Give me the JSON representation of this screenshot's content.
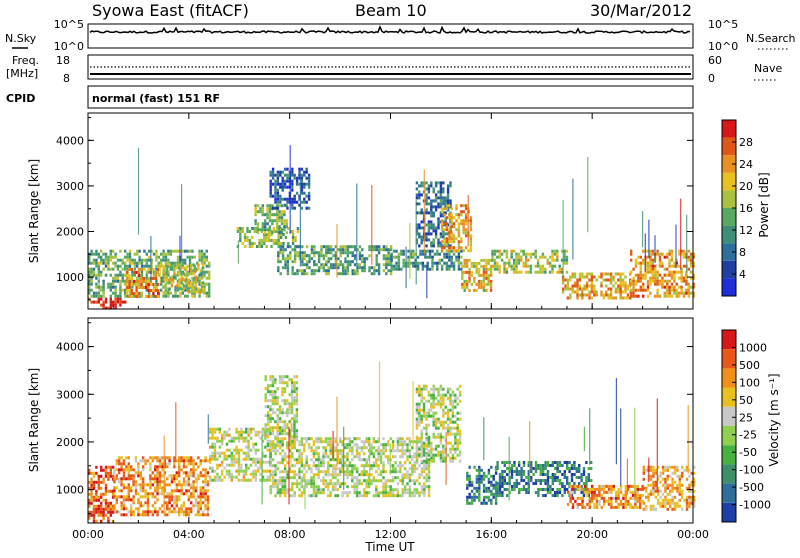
{
  "header": {
    "title": "Syowa East (fitACF)",
    "beam": "Beam 10",
    "date": "30/Mar/2012"
  },
  "strip_panels": {
    "nsky": {
      "label": "N.Sky",
      "ticks": [
        "10^5",
        "10^0"
      ],
      "right_label": "N.Search",
      "right_ticks": [
        "10^5",
        "10^0"
      ]
    },
    "freq": {
      "label_line1": "Freq.",
      "label_line2": "[MHz]",
      "ticks": [
        "18",
        "8"
      ],
      "right_label": "Nave",
      "right_ticks": [
        "60",
        "0"
      ]
    },
    "cpid": {
      "label": "CPID",
      "text": "normal (fast) 151 RF"
    }
  },
  "chart_data": [
    {
      "type": "heatmap",
      "name": "Power",
      "ylabel": "Slant Range [km]",
      "xlabel": "",
      "ylim": [
        300,
        4600
      ],
      "xlim_hours": [
        0,
        24
      ],
      "yticks": [
        "1000",
        "2000",
        "3000",
        "4000"
      ],
      "xticks": [
        "00:00",
        "04:00",
        "08:00",
        "12:00",
        "16:00",
        "20:00",
        "00:00"
      ],
      "colorbar": {
        "label": "Power [dB]",
        "ticks": [
          "4",
          "8",
          "12",
          "16",
          "20",
          "24",
          "28"
        ],
        "colors": [
          "#1f2fd8",
          "#2040a0",
          "#2e6e9a",
          "#3f8f78",
          "#58a860",
          "#a8c240",
          "#e8c020",
          "#e89020",
          "#e05818",
          "#d81818"
        ]
      },
      "features": [
        {
          "start": 0.0,
          "end": 1.5,
          "r_lo": 350,
          "r_hi": 550,
          "level": 0.95
        },
        {
          "start": 0.0,
          "end": 4.8,
          "r_lo": 550,
          "r_hi": 1600,
          "level": 0.45
        },
        {
          "start": 1.5,
          "end": 2.8,
          "r_lo": 600,
          "r_hi": 1200,
          "level": 0.75
        },
        {
          "start": 3.0,
          "end": 4.6,
          "r_lo": 700,
          "r_hi": 1300,
          "level": 0.55
        },
        {
          "start": 5.9,
          "end": 8.3,
          "r_lo": 1700,
          "r_hi": 2100,
          "level": 0.5
        },
        {
          "start": 6.6,
          "end": 7.9,
          "r_lo": 2000,
          "r_hi": 2600,
          "level": 0.45
        },
        {
          "start": 7.2,
          "end": 8.8,
          "r_lo": 2500,
          "r_hi": 3400,
          "level": 0.2
        },
        {
          "start": 7.5,
          "end": 12.0,
          "r_lo": 1100,
          "r_hi": 1700,
          "level": 0.4
        },
        {
          "start": 12.0,
          "end": 14.8,
          "r_lo": 1200,
          "r_hi": 1600,
          "level": 0.35
        },
        {
          "start": 13.0,
          "end": 14.4,
          "r_lo": 1700,
          "r_hi": 3100,
          "level": 0.25
        },
        {
          "start": 14.0,
          "end": 15.2,
          "r_lo": 1600,
          "r_hi": 2600,
          "level": 0.7
        },
        {
          "start": 14.8,
          "end": 16.0,
          "r_lo": 700,
          "r_hi": 1400,
          "level": 0.65
        },
        {
          "start": 16.0,
          "end": 19.0,
          "r_lo": 1100,
          "r_hi": 1600,
          "level": 0.55
        },
        {
          "start": 18.8,
          "end": 21.5,
          "r_lo": 550,
          "r_hi": 1100,
          "level": 0.7
        },
        {
          "start": 21.5,
          "end": 24.0,
          "r_lo": 600,
          "r_hi": 1600,
          "level": 0.75
        }
      ]
    },
    {
      "type": "heatmap",
      "name": "Velocity",
      "ylabel": "Slant Range [km]",
      "xlabel": "Time UT",
      "ylim": [
        300,
        4600
      ],
      "xlim_hours": [
        0,
        24
      ],
      "yticks": [
        "1000",
        "2000",
        "3000",
        "4000"
      ],
      "xticks": [
        "00:00",
        "04:00",
        "08:00",
        "12:00",
        "16:00",
        "20:00",
        "00:00"
      ],
      "colorbar": {
        "label": "Velocity [m s⁻¹]",
        "ticks": [
          "1000",
          "500",
          "100",
          "50",
          "25",
          "-25",
          "-50",
          "-100",
          "-500",
          "-1000"
        ],
        "colors": [
          "#1e3fa8",
          "#2e6e9a",
          "#3d8f6a",
          "#46b040",
          "#8fd050",
          "#c8c8c8",
          "#e8c020",
          "#f09018",
          "#e85818",
          "#d81818"
        ]
      },
      "features": [
        {
          "start": 0.0,
          "end": 1.0,
          "r_lo": 350,
          "r_hi": 1500,
          "level": 0.85
        },
        {
          "start": 1.0,
          "end": 4.8,
          "r_lo": 450,
          "r_hi": 1700,
          "level": 0.75
        },
        {
          "start": 4.8,
          "end": 7.2,
          "r_lo": 1200,
          "r_hi": 2300,
          "level": 0.55
        },
        {
          "start": 7.0,
          "end": 8.3,
          "r_lo": 1900,
          "r_hi": 3400,
          "level": 0.5
        },
        {
          "start": 7.2,
          "end": 13.5,
          "r_lo": 900,
          "r_hi": 2100,
          "level": 0.52
        },
        {
          "start": 13.0,
          "end": 14.8,
          "r_lo": 1600,
          "r_hi": 3200,
          "level": 0.5
        },
        {
          "start": 15.0,
          "end": 16.2,
          "r_lo": 700,
          "r_hi": 1500,
          "level": 0.2
        },
        {
          "start": 16.2,
          "end": 20.0,
          "r_lo": 900,
          "r_hi": 1600,
          "level": 0.2
        },
        {
          "start": 19.0,
          "end": 22.0,
          "r_lo": 600,
          "r_hi": 1100,
          "level": 0.75
        },
        {
          "start": 22.0,
          "end": 24.0,
          "r_lo": 600,
          "r_hi": 1500,
          "level": 0.7
        }
      ]
    }
  ]
}
